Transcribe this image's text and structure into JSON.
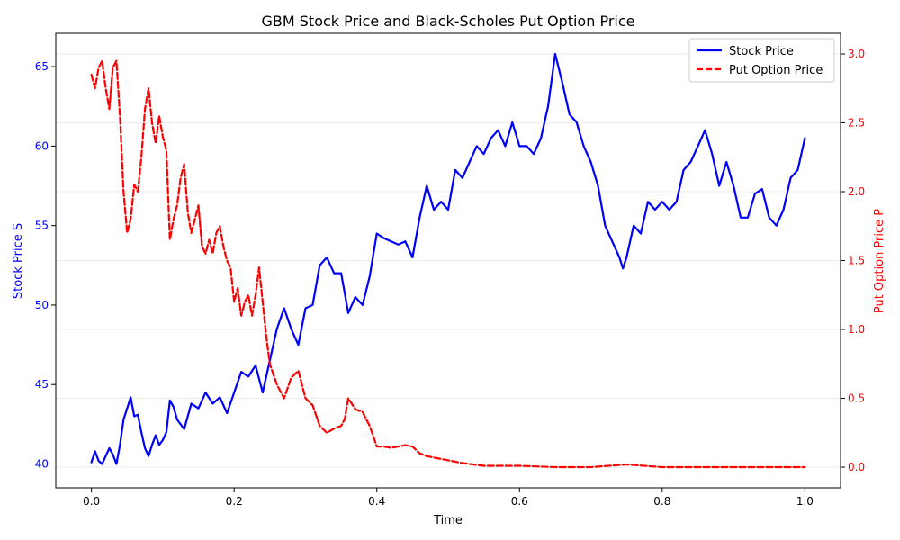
{
  "chart_data": {
    "type": "line",
    "title": "GBM Stock Price and Black-Scholes Put Option Price",
    "xlabel": "Time",
    "ylabel_left": "Stock Price S",
    "ylabel_right": "Put Option Price P",
    "xlim": [
      -0.05,
      1.05
    ],
    "ylim_left": [
      38.5,
      67.1
    ],
    "ylim_right": [
      -0.15,
      3.15
    ],
    "x_ticks": [
      0.0,
      0.2,
      0.4,
      0.6,
      0.8,
      1.0
    ],
    "x_tick_labels": [
      "0.0",
      "0.2",
      "0.4",
      "0.6",
      "0.8",
      "1.0"
    ],
    "y_left_ticks": [
      40,
      45,
      50,
      55,
      60,
      65
    ],
    "y_left_tick_labels": [
      "40",
      "45",
      "50",
      "55",
      "60",
      "65"
    ],
    "y_right_ticks": [
      0.0,
      0.5,
      1.0,
      1.5,
      2.0,
      2.5,
      3.0
    ],
    "y_right_tick_labels": [
      "0.0",
      "0.5",
      "1.0",
      "1.5",
      "2.0",
      "2.5",
      "3.0"
    ],
    "grid": "horizontal, right axis",
    "legend_position": "top-right",
    "series": [
      {
        "name": "Stock Price",
        "axis": "left",
        "color": "#0000ff",
        "style": "solid",
        "x": [
          0.0,
          0.005,
          0.01,
          0.015,
          0.02,
          0.025,
          0.03,
          0.035,
          0.04,
          0.045,
          0.05,
          0.055,
          0.06,
          0.065,
          0.07,
          0.075,
          0.08,
          0.085,
          0.09,
          0.095,
          0.1,
          0.105,
          0.11,
          0.115,
          0.12,
          0.13,
          0.14,
          0.15,
          0.16,
          0.17,
          0.18,
          0.19,
          0.2,
          0.21,
          0.22,
          0.23,
          0.24,
          0.25,
          0.26,
          0.27,
          0.28,
          0.29,
          0.3,
          0.31,
          0.32,
          0.33,
          0.34,
          0.35,
          0.36,
          0.37,
          0.38,
          0.39,
          0.4,
          0.41,
          0.42,
          0.43,
          0.44,
          0.45,
          0.46,
          0.47,
          0.48,
          0.49,
          0.5,
          0.51,
          0.52,
          0.53,
          0.54,
          0.55,
          0.56,
          0.57,
          0.58,
          0.59,
          0.6,
          0.61,
          0.62,
          0.63,
          0.64,
          0.65,
          0.66,
          0.67,
          0.68,
          0.69,
          0.7,
          0.71,
          0.72,
          0.73,
          0.74,
          0.745,
          0.75,
          0.76,
          0.77,
          0.78,
          0.79,
          0.8,
          0.81,
          0.82,
          0.83,
          0.84,
          0.85,
          0.86,
          0.87,
          0.88,
          0.89,
          0.9,
          0.91,
          0.92,
          0.93,
          0.94,
          0.95,
          0.96,
          0.97,
          0.98,
          0.99,
          1.0
        ],
        "values": [
          40.1,
          40.8,
          40.2,
          40.0,
          40.5,
          41.0,
          40.6,
          40.0,
          41.2,
          42.8,
          43.5,
          44.2,
          43.0,
          43.1,
          42.0,
          41.0,
          40.5,
          41.2,
          41.8,
          41.2,
          41.5,
          42.0,
          44.0,
          43.6,
          42.8,
          42.2,
          43.8,
          43.5,
          44.5,
          43.8,
          44.2,
          43.2,
          44.5,
          45.8,
          45.5,
          46.2,
          44.5,
          46.5,
          48.5,
          49.8,
          48.5,
          47.5,
          49.8,
          50.0,
          52.5,
          53.0,
          52.0,
          52.0,
          49.5,
          50.5,
          50.0,
          51.8,
          54.5,
          54.2,
          54.0,
          53.8,
          54.0,
          53.0,
          55.5,
          57.5,
          56.0,
          56.5,
          56.0,
          58.5,
          58.0,
          59.0,
          60.0,
          59.5,
          60.5,
          61.0,
          60.0,
          61.5,
          60.0,
          60.0,
          59.5,
          60.5,
          62.5,
          65.8,
          64.0,
          62.0,
          61.5,
          60.0,
          59.0,
          57.5,
          55.0,
          54.0,
          53.0,
          52.3,
          53.0,
          55.0,
          54.5,
          56.5,
          56.0,
          56.5,
          56.0,
          56.5,
          58.5,
          59.0,
          60.0,
          61.0,
          59.5,
          57.5,
          59.0,
          57.5,
          55.5,
          55.5,
          57.0,
          57.3,
          55.5,
          55.0,
          56.0,
          58.0,
          58.5,
          60.5
        ]
      },
      {
        "name": "Put Option Price",
        "axis": "right",
        "color": "#ff0000",
        "style": "dashed",
        "x": [
          0.0,
          0.005,
          0.01,
          0.015,
          0.02,
          0.025,
          0.03,
          0.035,
          0.04,
          0.045,
          0.05,
          0.055,
          0.06,
          0.065,
          0.07,
          0.075,
          0.08,
          0.085,
          0.09,
          0.095,
          0.1,
          0.105,
          0.11,
          0.115,
          0.12,
          0.125,
          0.13,
          0.135,
          0.14,
          0.145,
          0.15,
          0.155,
          0.16,
          0.165,
          0.17,
          0.175,
          0.18,
          0.185,
          0.19,
          0.195,
          0.2,
          0.205,
          0.21,
          0.215,
          0.22,
          0.225,
          0.23,
          0.235,
          0.24,
          0.245,
          0.25,
          0.26,
          0.27,
          0.28,
          0.29,
          0.3,
          0.31,
          0.32,
          0.33,
          0.34,
          0.35,
          0.355,
          0.36,
          0.37,
          0.38,
          0.39,
          0.4,
          0.41,
          0.42,
          0.43,
          0.44,
          0.45,
          0.46,
          0.47,
          0.48,
          0.49,
          0.5,
          0.52,
          0.55,
          0.6,
          0.65,
          0.7,
          0.75,
          0.8,
          0.9,
          1.0
        ],
        "values": [
          2.85,
          2.75,
          2.9,
          2.95,
          2.75,
          2.6,
          2.9,
          2.95,
          2.55,
          2.0,
          1.7,
          1.8,
          2.05,
          2.0,
          2.25,
          2.6,
          2.75,
          2.5,
          2.35,
          2.55,
          2.4,
          2.3,
          1.65,
          1.8,
          1.9,
          2.1,
          2.2,
          1.85,
          1.7,
          1.8,
          1.9,
          1.6,
          1.55,
          1.65,
          1.55,
          1.7,
          1.75,
          1.6,
          1.5,
          1.45,
          1.2,
          1.3,
          1.1,
          1.2,
          1.25,
          1.1,
          1.25,
          1.45,
          1.2,
          0.95,
          0.75,
          0.6,
          0.5,
          0.65,
          0.7,
          0.5,
          0.45,
          0.3,
          0.25,
          0.28,
          0.3,
          0.35,
          0.5,
          0.42,
          0.4,
          0.3,
          0.15,
          0.15,
          0.14,
          0.15,
          0.16,
          0.15,
          0.1,
          0.08,
          0.07,
          0.06,
          0.05,
          0.03,
          0.01,
          0.01,
          0.0,
          0.0,
          0.02,
          0.0,
          0.0,
          0.0
        ]
      }
    ]
  }
}
